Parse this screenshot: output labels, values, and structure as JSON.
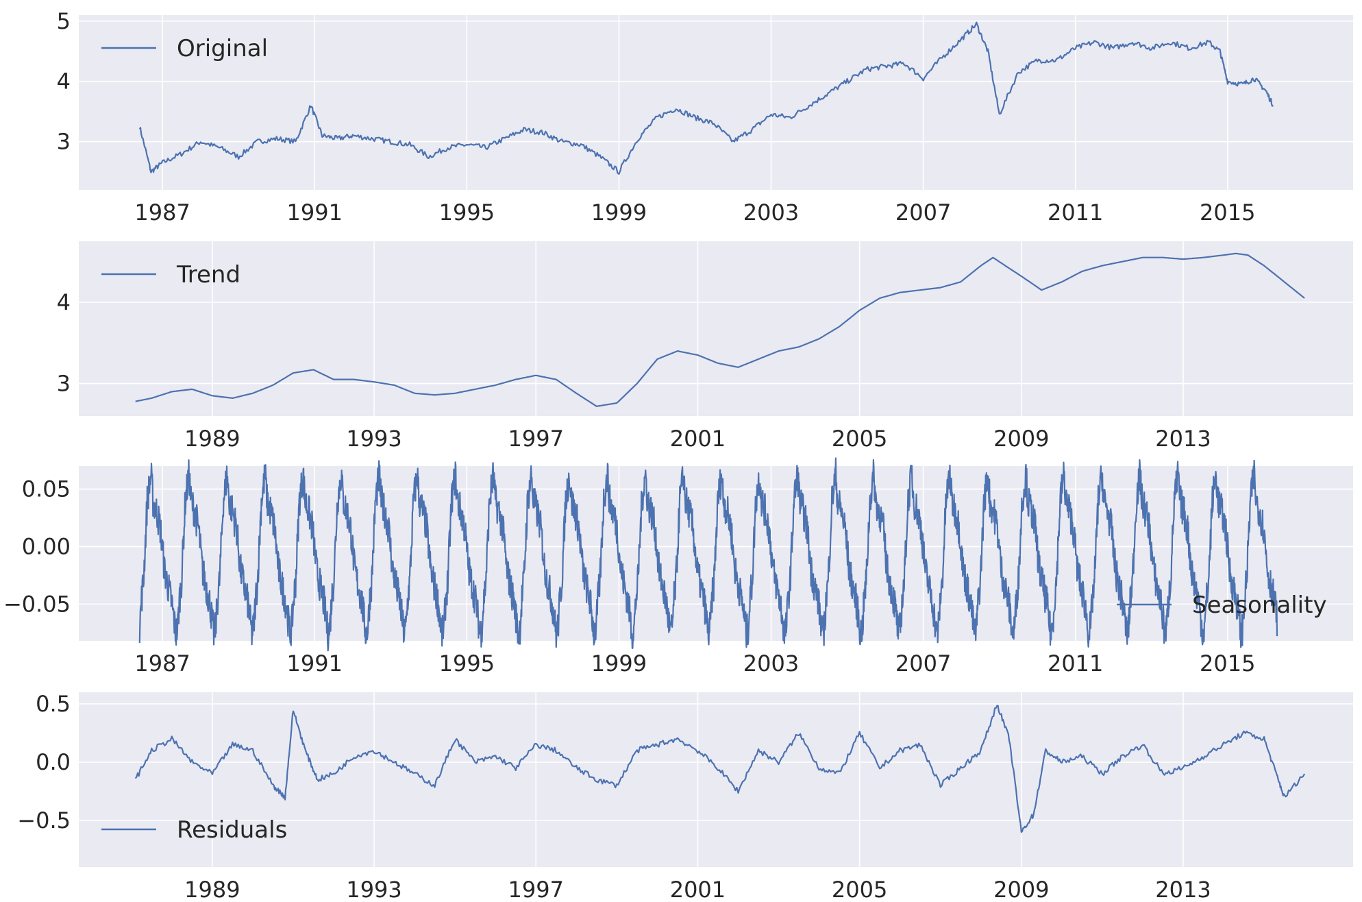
{
  "chart_data": [
    {
      "type": "line",
      "legend": "Original",
      "legend_position": "upper-left",
      "grid": true,
      "xlim": [
        1984.8,
        2018.3
      ],
      "ylim": [
        2.2,
        5.1
      ],
      "x_ticks": [
        "1987",
        "1991",
        "1995",
        "1999",
        "2003",
        "2007",
        "2011",
        "2015"
      ],
      "y_ticks": [
        "3",
        "4",
        "5"
      ],
      "x": [
        1986.4,
        1986.7,
        1987.0,
        1987.5,
        1988.0,
        1988.5,
        1989.0,
        1989.5,
        1990.0,
        1990.5,
        1990.9,
        1991.2,
        1991.6,
        1992.0,
        1992.5,
        1993.0,
        1993.5,
        1994.0,
        1994.5,
        1995.0,
        1995.5,
        1996.0,
        1996.5,
        1997.0,
        1997.5,
        1998.0,
        1998.5,
        1999.0,
        1999.5,
        2000.0,
        2000.5,
        2001.0,
        2001.5,
        2002.0,
        2002.5,
        2003.0,
        2003.5,
        2004.0,
        2004.5,
        2005.0,
        2005.5,
        2006.0,
        2006.5,
        2007.0,
        2007.5,
        2008.0,
        2008.4,
        2008.7,
        2009.0,
        2009.5,
        2010.0,
        2010.5,
        2011.0,
        2011.5,
        2012.0,
        2012.5,
        2013.0,
        2013.5,
        2014.0,
        2014.5,
        2014.8,
        2015.0,
        2015.4,
        2015.7,
        2016.0,
        2016.2
      ],
      "values": [
        3.25,
        2.5,
        2.65,
        2.8,
        3.0,
        2.9,
        2.75,
        3.0,
        3.05,
        3.0,
        3.6,
        3.1,
        3.05,
        3.1,
        3.05,
        3.0,
        2.95,
        2.75,
        2.9,
        2.95,
        2.9,
        3.05,
        3.2,
        3.15,
        3.0,
        2.95,
        2.75,
        2.5,
        3.05,
        3.4,
        3.55,
        3.4,
        3.3,
        3.0,
        3.2,
        3.45,
        3.4,
        3.6,
        3.8,
        4.0,
        4.2,
        4.25,
        4.3,
        4.05,
        4.4,
        4.7,
        4.95,
        4.5,
        3.45,
        4.15,
        4.35,
        4.35,
        4.55,
        4.65,
        4.55,
        4.65,
        4.55,
        4.65,
        4.55,
        4.65,
        4.5,
        4.0,
        3.95,
        4.05,
        3.85,
        3.6
      ]
    },
    {
      "type": "line",
      "legend": "Trend",
      "legend_position": "upper-left",
      "grid": true,
      "xlim": [
        1985.7,
        2017.2
      ],
      "ylim": [
        2.6,
        4.75
      ],
      "x_ticks": [
        "1989",
        "1993",
        "1997",
        "2001",
        "2005",
        "2009",
        "2013"
      ],
      "y_ticks": [
        "3",
        "4"
      ],
      "x": [
        1987.1,
        1987.5,
        1988.0,
        1988.5,
        1989.0,
        1989.5,
        1990.0,
        1990.5,
        1991.0,
        1991.5,
        1992.0,
        1992.5,
        1993.0,
        1993.5,
        1994.0,
        1994.5,
        1995.0,
        1995.5,
        1996.0,
        1996.5,
        1997.0,
        1997.5,
        1998.0,
        1998.5,
        1999.0,
        1999.5,
        2000.0,
        2000.5,
        2001.0,
        2001.5,
        2002.0,
        2002.5,
        2003.0,
        2003.5,
        2004.0,
        2004.5,
        2005.0,
        2005.5,
        2006.0,
        2006.5,
        2007.0,
        2007.5,
        2008.0,
        2008.3,
        2008.6,
        2009.0,
        2009.5,
        2010.0,
        2010.5,
        2011.0,
        2011.5,
        2012.0,
        2012.5,
        2013.0,
        2013.5,
        2014.0,
        2014.3,
        2014.6,
        2015.0,
        2015.5,
        2016.0
      ],
      "values": [
        2.78,
        2.82,
        2.9,
        2.93,
        2.85,
        2.82,
        2.88,
        2.98,
        3.13,
        3.17,
        3.05,
        3.05,
        3.02,
        2.98,
        2.88,
        2.86,
        2.88,
        2.93,
        2.98,
        3.05,
        3.1,
        3.05,
        2.88,
        2.72,
        2.76,
        3.0,
        3.3,
        3.4,
        3.35,
        3.25,
        3.2,
        3.3,
        3.4,
        3.45,
        3.55,
        3.7,
        3.9,
        4.05,
        4.12,
        4.15,
        4.18,
        4.25,
        4.45,
        4.55,
        4.45,
        4.32,
        4.15,
        4.25,
        4.38,
        4.45,
        4.5,
        4.55,
        4.55,
        4.53,
        4.55,
        4.58,
        4.6,
        4.58,
        4.45,
        4.25,
        4.05
      ]
    },
    {
      "type": "line",
      "legend": "Seasonality",
      "legend_position": "lower-right",
      "grid": true,
      "xlim": [
        1984.8,
        2018.3
      ],
      "ylim": [
        -0.082,
        0.07
      ],
      "x_ticks": [
        "1987",
        "1991",
        "1995",
        "1999",
        "2003",
        "2007",
        "2011",
        "2015"
      ],
      "y_ticks": [
        "0.05",
        "0.00",
        "−0.05"
      ],
      "period_years": 1.0,
      "x_start": 1986.4,
      "x_end": 2016.3,
      "cycle_x_offset": [
        0.0,
        0.05,
        0.1,
        0.2,
        0.3,
        0.35,
        0.45,
        0.55,
        0.65,
        0.75,
        0.85,
        0.95,
        1.0
      ],
      "cycle_values": [
        -0.07,
        -0.045,
        -0.03,
        0.04,
        0.063,
        0.04,
        0.03,
        0.015,
        -0.02,
        -0.035,
        -0.05,
        -0.076,
        -0.07
      ]
    },
    {
      "type": "line",
      "legend": "Residuals",
      "legend_position": "lower-left",
      "grid": true,
      "xlim": [
        1985.7,
        2017.2
      ],
      "ylim": [
        -0.9,
        0.6
      ],
      "x_ticks": [
        "1989",
        "1993",
        "1997",
        "2001",
        "2005",
        "2009",
        "2013"
      ],
      "y_ticks": [
        "0.5",
        "0.0",
        "−0.5"
      ],
      "x": [
        1987.1,
        1987.5,
        1988.0,
        1988.5,
        1989.0,
        1989.5,
        1990.0,
        1990.5,
        1990.8,
        1991.0,
        1991.3,
        1991.6,
        1992.0,
        1992.5,
        1993.0,
        1993.5,
        1994.0,
        1994.5,
        1995.0,
        1995.5,
        1996.0,
        1996.5,
        1997.0,
        1997.5,
        1998.0,
        1998.5,
        1999.0,
        1999.5,
        2000.0,
        2000.5,
        2001.0,
        2001.5,
        2002.0,
        2002.5,
        2003.0,
        2003.5,
        2004.0,
        2004.5,
        2005.0,
        2005.5,
        2006.0,
        2006.5,
        2007.0,
        2007.5,
        2008.0,
        2008.4,
        2008.7,
        2009.0,
        2009.3,
        2009.6,
        2010.0,
        2010.5,
        2011.0,
        2011.5,
        2012.0,
        2012.5,
        2013.0,
        2013.5,
        2014.0,
        2014.5,
        2015.0,
        2015.3,
        2015.5,
        2016.0
      ],
      "values": [
        -0.15,
        0.1,
        0.2,
        0.0,
        -0.1,
        0.15,
        0.1,
        -0.2,
        -0.3,
        0.45,
        0.1,
        -0.15,
        -0.1,
        0.05,
        0.1,
        0.0,
        -0.1,
        -0.2,
        0.2,
        0.0,
        0.05,
        -0.05,
        0.15,
        0.1,
        -0.05,
        -0.15,
        -0.2,
        0.1,
        0.15,
        0.2,
        0.1,
        -0.05,
        -0.25,
        0.1,
        0.0,
        0.25,
        -0.05,
        -0.1,
        0.25,
        -0.05,
        0.1,
        0.15,
        -0.2,
        -0.05,
        0.1,
        0.5,
        0.2,
        -0.6,
        -0.45,
        0.1,
        0.0,
        0.05,
        -0.1,
        0.05,
        0.15,
        -0.1,
        -0.05,
        0.05,
        0.15,
        0.25,
        0.2,
        -0.1,
        -0.3,
        -0.1
      ]
    }
  ]
}
